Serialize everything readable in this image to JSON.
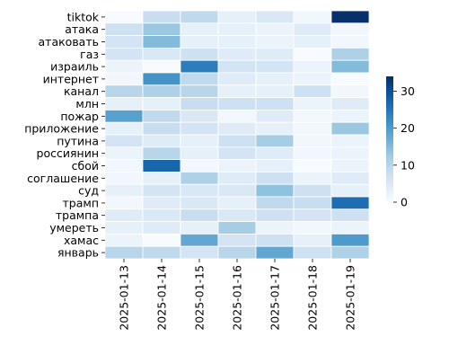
{
  "chart_data": {
    "type": "heatmap",
    "title": "",
    "xlabel": "",
    "ylabel": "",
    "x_categories": [
      "2025-01-13",
      "2025-01-14",
      "2025-01-15",
      "2025-01-16",
      "2025-01-17",
      "2025-01-18",
      "2025-01-19"
    ],
    "y_categories": [
      "tiktok",
      "атака",
      "атаковать",
      "газ",
      "израиль",
      "интернет",
      "канал",
      "млн",
      "пожар",
      "приложение",
      "путина",
      "россиянин",
      "сбой",
      "соглашение",
      "суд",
      "трамп",
      "трампа",
      "умереть",
      "хамас",
      "январь"
    ],
    "values": [
      [
        0,
        8,
        9,
        3,
        5,
        1,
        34
      ],
      [
        7,
        13,
        3,
        3,
        2,
        4,
        1
      ],
      [
        6,
        15,
        3,
        3,
        2,
        3,
        1
      ],
      [
        6,
        5,
        7,
        4,
        4,
        0,
        11
      ],
      [
        2,
        0,
        24,
        6,
        6,
        2,
        15
      ],
      [
        1,
        21,
        9,
        4,
        3,
        2,
        0
      ],
      [
        10,
        11,
        10,
        3,
        3,
        7,
        1
      ],
      [
        3,
        3,
        8,
        7,
        7,
        2,
        4
      ],
      [
        19,
        9,
        5,
        1,
        4,
        1,
        2
      ],
      [
        3,
        8,
        6,
        4,
        3,
        1,
        13
      ],
      [
        6,
        4,
        3,
        7,
        12,
        1,
        2
      ],
      [
        2,
        10,
        3,
        6,
        4,
        1,
        2
      ],
      [
        1,
        27,
        1,
        2,
        3,
        0,
        2
      ],
      [
        1,
        3,
        11,
        4,
        7,
        2,
        4
      ],
      [
        3,
        6,
        5,
        5,
        14,
        7,
        3
      ],
      [
        1,
        4,
        5,
        3,
        9,
        8,
        26
      ],
      [
        4,
        5,
        8,
        5,
        7,
        6,
        7
      ],
      [
        3,
        4,
        3,
        12,
        2,
        1,
        2
      ],
      [
        2,
        0,
        18,
        6,
        7,
        3,
        20
      ],
      [
        10,
        9,
        6,
        10,
        18,
        7,
        11
      ]
    ],
    "colorbar": {
      "min": 0,
      "max": 34,
      "ticks": [
        0,
        10,
        20,
        30
      ],
      "colormap": "Blues",
      "color_stops": [
        "#f7fbff",
        "#deebf7",
        "#c6dbef",
        "#9ecae1",
        "#6baed6",
        "#4292c6",
        "#2171b5",
        "#08519c",
        "#08306b"
      ]
    },
    "cell_border_color": "#ffffff",
    "grid": false,
    "legend": "colorbar-right"
  }
}
